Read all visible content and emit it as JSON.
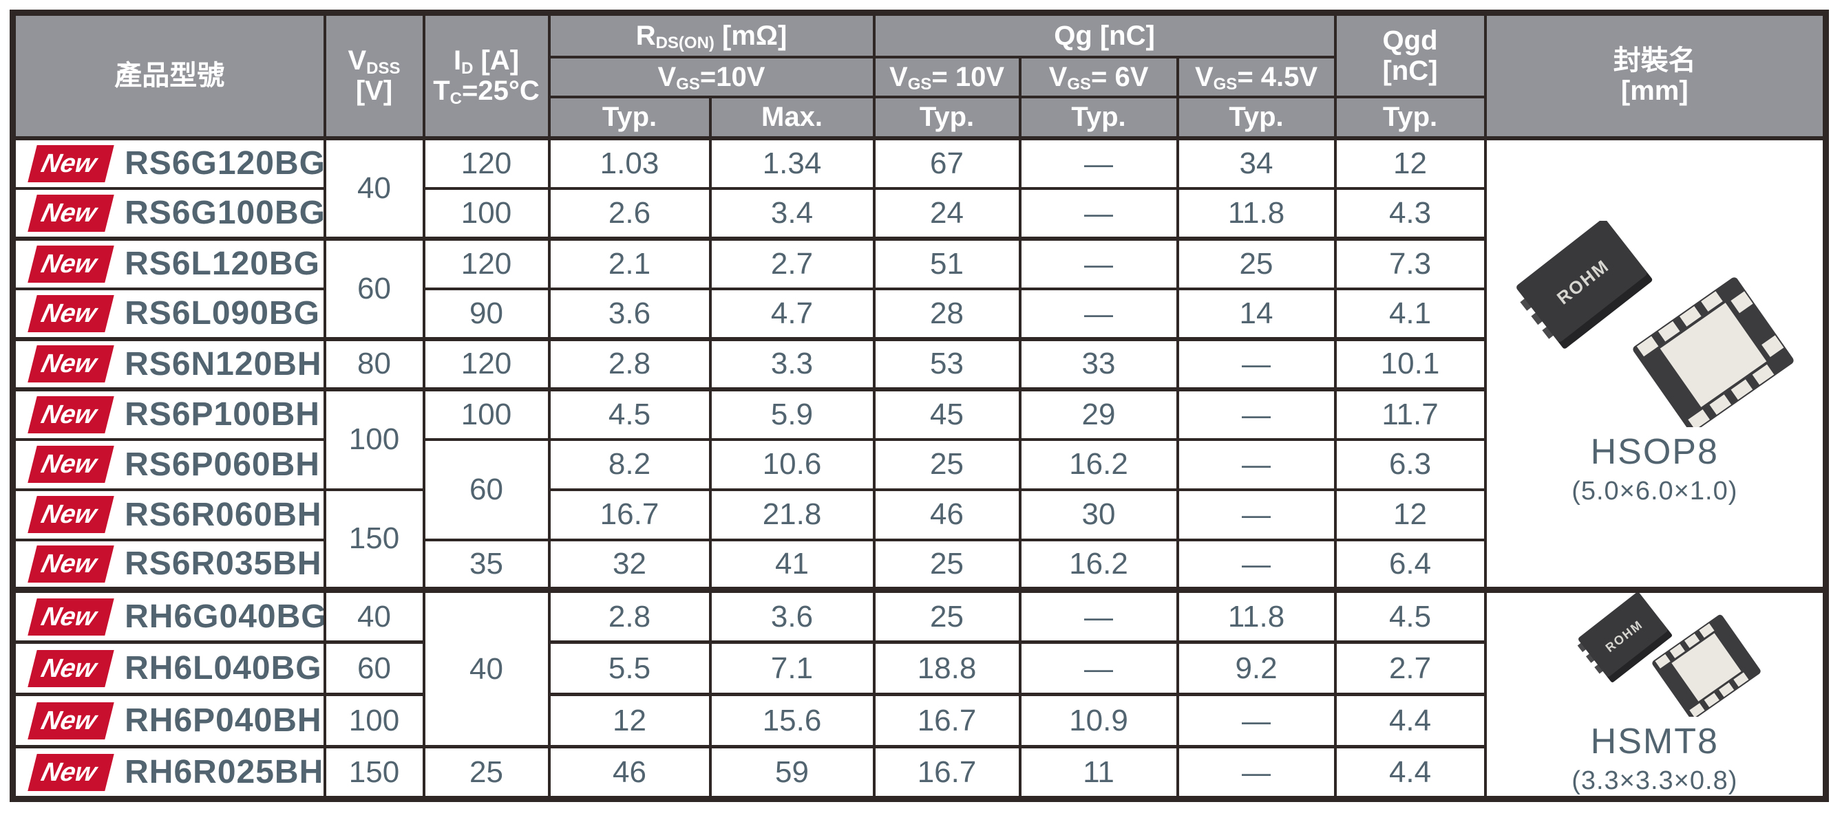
{
  "colors": {
    "badge_red": "#c8102e",
    "header_bg": "#939499",
    "border": "#2e2725",
    "text_slate": "#52646f"
  },
  "table": {
    "new_badge": "New",
    "header": {
      "product": "產品型號",
      "vdss_html": "V<sub>DSS</sub><br>[V]",
      "id_html": "I<sub>D</sub> [A]<br>T<sub>C</sub>=25°C",
      "rds_html": "R<sub>DS(ON)</sub> [mΩ]",
      "rds_cond_html": "V<sub>GS</sub>=10V",
      "qg_html": "Qg [nC]",
      "qg10_html": "V<sub>GS</sub>= 10V",
      "qg6_html": "V<sub>GS</sub>= 6V",
      "qg45_html": "V<sub>GS</sub>= 4.5V",
      "qgd_html": "Qgd<br>[nC]",
      "package_html": "封裝名<br>[mm]",
      "typ": "Typ.",
      "max": "Max."
    },
    "rows": [
      {
        "model": "RS6G120BG",
        "vdss": "40",
        "id": "120",
        "rds_typ": "1.03",
        "rds_max": "1.34",
        "qg10": "67",
        "qg6": "—",
        "qg45": "34",
        "qgd": "12"
      },
      {
        "model": "RS6G100BG",
        "id": "100",
        "rds_typ": "2.6",
        "rds_max": "3.4",
        "qg10": "24",
        "qg6": "—",
        "qg45": "11.8",
        "qgd": "4.3"
      },
      {
        "model": "RS6L120BG",
        "vdss": "60",
        "id": "120",
        "rds_typ": "2.1",
        "rds_max": "2.7",
        "qg10": "51",
        "qg6": "—",
        "qg45": "25",
        "qgd": "7.3"
      },
      {
        "model": "RS6L090BG",
        "id": "90",
        "rds_typ": "3.6",
        "rds_max": "4.7",
        "qg10": "28",
        "qg6": "—",
        "qg45": "14",
        "qgd": "4.1"
      },
      {
        "model": "RS6N120BH",
        "vdss": "80",
        "id": "120",
        "rds_typ": "2.8",
        "rds_max": "3.3",
        "qg10": "53",
        "qg6": "33",
        "qg45": "—",
        "qgd": "10.1"
      },
      {
        "model": "RS6P100BH",
        "vdss": "100",
        "id": "100",
        "rds_typ": "4.5",
        "rds_max": "5.9",
        "qg10": "45",
        "qg6": "29",
        "qg45": "—",
        "qgd": "11.7"
      },
      {
        "model": "RS6P060BH",
        "id": "60",
        "rds_typ": "8.2",
        "rds_max": "10.6",
        "qg10": "25",
        "qg6": "16.2",
        "qg45": "—",
        "qgd": "6.3"
      },
      {
        "model": "RS6R060BH",
        "vdss": "150",
        "rds_typ": "16.7",
        "rds_max": "21.8",
        "qg10": "46",
        "qg6": "30",
        "qg45": "—",
        "qgd": "12"
      },
      {
        "model": "RS6R035BH",
        "id": "35",
        "rds_typ": "32",
        "rds_max": "41",
        "qg10": "25",
        "qg6": "16.2",
        "qg45": "—",
        "qgd": "6.4"
      },
      {
        "model": "RH6G040BG",
        "vdss": "40",
        "id": "40",
        "rds_typ": "2.8",
        "rds_max": "3.6",
        "qg10": "25",
        "qg6": "—",
        "qg45": "11.8",
        "qgd": "4.5"
      },
      {
        "model": "RH6L040BG",
        "vdss": "60",
        "rds_typ": "5.5",
        "rds_max": "7.1",
        "qg10": "18.8",
        "qg6": "—",
        "qg45": "9.2",
        "qgd": "2.7"
      },
      {
        "model": "RH6P040BH",
        "vdss": "100",
        "rds_typ": "12",
        "rds_max": "15.6",
        "qg10": "16.7",
        "qg6": "10.9",
        "qg45": "—",
        "qgd": "4.4"
      },
      {
        "model": "RH6R025BH",
        "vdss": "150",
        "id": "25",
        "rds_typ": "46",
        "rds_max": "59",
        "qg10": "16.7",
        "qg6": "11",
        "qg45": "—",
        "qgd": "4.4"
      }
    ],
    "packages": [
      {
        "name": "HSOP8",
        "dims": "(5.0×6.0×1.0)",
        "logo": "ROHM"
      },
      {
        "name": "HSMT8",
        "dims": "(3.3×3.3×0.8)",
        "logo": "ROHM"
      }
    ]
  }
}
